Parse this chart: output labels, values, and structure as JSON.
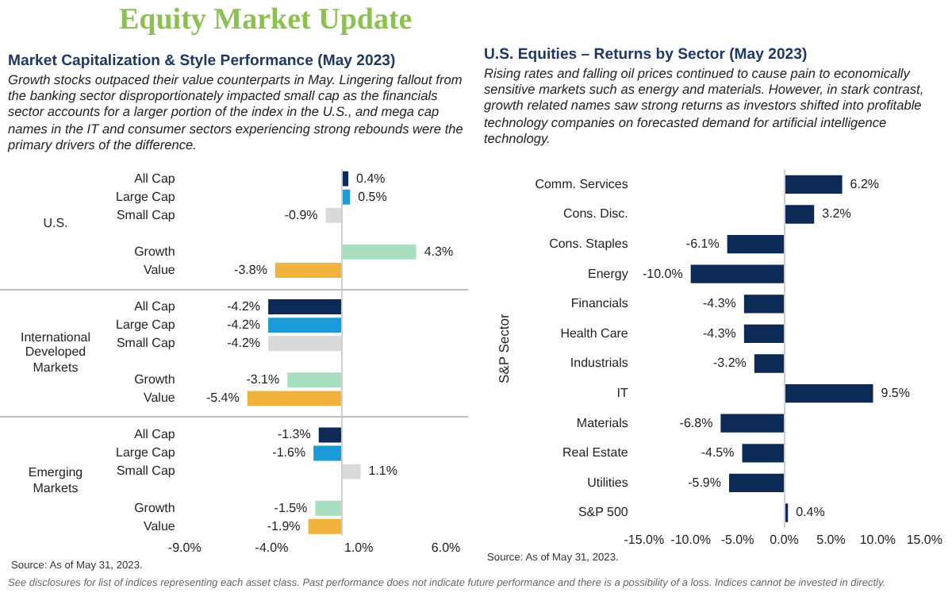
{
  "chart_data": [
    {
      "type": "bar",
      "orientation": "horizontal",
      "title": "Market Capitalization & Style Performance (May 2023)",
      "subtitle": "Growth stocks outpaced their value counterparts in May. Lingering fallout from the banking sector disproportionately impacted small cap as the financials sector accounts for a larger portion of the index in the U.S., and mega cap names in the IT and consumer sectors experiencing strong rebounds were the primary drivers of the difference.",
      "categories": [
        "All Cap",
        "Large Cap",
        "Small Cap",
        null,
        "Growth",
        "Value",
        null,
        "All Cap",
        "Large Cap",
        "Small Cap",
        null,
        "Growth",
        "Value",
        null,
        "All Cap",
        "Large Cap",
        "Small Cap",
        null,
        "Growth",
        "Value"
      ],
      "values": [
        0.4,
        0.5,
        -0.9,
        null,
        4.3,
        -3.8,
        null,
        -4.2,
        -4.2,
        -4.2,
        null,
        -3.1,
        -5.4,
        null,
        -1.3,
        -1.6,
        1.1,
        null,
        -1.5,
        -1.9
      ],
      "value_labels": [
        "0.4%",
        "0.5%",
        "-0.9%",
        null,
        "4.3%",
        "-3.8%",
        null,
        "-4.2%",
        "-4.2%",
        "-4.2%",
        null,
        "-3.1%",
        "-5.4%",
        null,
        "-1.3%",
        "-1.6%",
        "1.1%",
        null,
        "-1.5%",
        "-1.9%"
      ],
      "colors": [
        "#0b2a55",
        "#1a9ad6",
        "#d9d9d9",
        null,
        "#a8dfc0",
        "#f0b43c",
        null,
        "#0b2a55",
        "#1a9ad6",
        "#d9d9d9",
        null,
        "#a8dfc0",
        "#f0b43c",
        null,
        "#0b2a55",
        "#1a9ad6",
        "#d9d9d9",
        null,
        "#a8dfc0",
        "#f0b43c"
      ],
      "xlim": [
        -9,
        6
      ],
      "xticks": [
        {
          "value": -9,
          "label": "-9.0%"
        },
        {
          "value": -4,
          "label": "-4.0%"
        },
        {
          "value": 1,
          "label": "1.0%"
        },
        {
          "value": 6,
          "label": "6.0%"
        }
      ],
      "grid": false,
      "legend": false,
      "ref_lines": [
        {
          "axis": "x",
          "value": 0,
          "color": "#d0d0d0"
        }
      ],
      "annotations": [
        "Equity Market Update",
        "U.S.",
        "International Developed Markets",
        "Emerging Markets",
        "Source: As of May 31, 2023.",
        "See disclosures for list of indices representing each asset class. Past performance does not indicate future performance and there is a possibility of a loss. Indices cannot be invested in directly."
      ]
    },
    {
      "type": "bar",
      "orientation": "horizontal",
      "title": "U.S. Equities – Returns by Sector (May 2023)",
      "subtitle": "Rising rates and falling oil prices continued to cause pain to economically sensitive markets such as energy and materials. However, in stark contrast, growth related names saw strong returns as investors shifted into profitable technology companies on forecasted demand for artificial intelligence technology.",
      "ylabel": "S&P Sector",
      "categories": [
        "Comm. Services",
        "Cons. Disc.",
        "Cons. Staples",
        "Energy",
        "Financials",
        "Health Care",
        "Industrials",
        "IT",
        "Materials",
        "Real Estate",
        "Utilities",
        "S&P 500"
      ],
      "values": [
        6.2,
        3.2,
        -6.1,
        -10.0,
        -4.3,
        -4.3,
        -3.2,
        9.5,
        -6.8,
        -4.5,
        -5.9,
        0.4
      ],
      "value_labels": [
        "6.2%",
        "3.2%",
        "-6.1%",
        "-10.0%",
        "-4.3%",
        "-4.3%",
        "-3.2%",
        "9.5%",
        "-6.8%",
        "-4.5%",
        "-5.9%",
        "0.4%"
      ],
      "color": "#0b2a55",
      "xlim": [
        -15,
        15
      ],
      "xticks": [
        {
          "value": -15,
          "label": "-15.0%"
        },
        {
          "value": -10,
          "label": "-10.0%"
        },
        {
          "value": -5,
          "label": "-5.0%"
        },
        {
          "value": 0,
          "label": "0.0%"
        },
        {
          "value": 5,
          "label": "5.0%"
        },
        {
          "value": 10,
          "label": "10.0%"
        },
        {
          "value": 15,
          "label": "15.0%"
        }
      ],
      "grid": false,
      "legend": false,
      "ref_lines": [
        {
          "axis": "x",
          "value": 0,
          "color": "#d0d0d0"
        }
      ],
      "annotations": [
        "Source: As of May 31, 2023."
      ]
    }
  ]
}
